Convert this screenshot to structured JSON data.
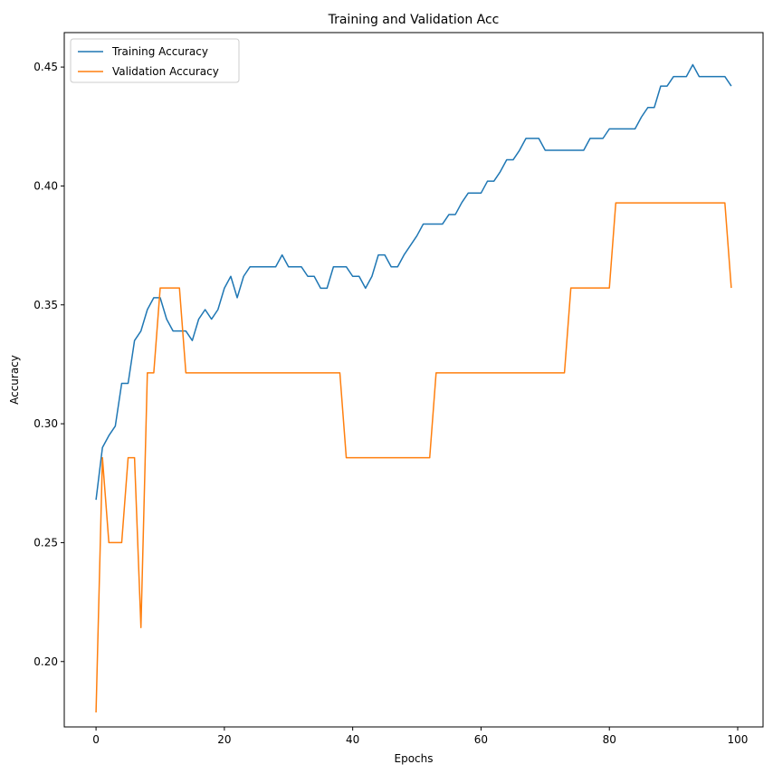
{
  "chart_data": {
    "type": "line",
    "title": "Training and Validation Acc",
    "xlabel": "Epochs",
    "ylabel": "Accuracy",
    "xlim": [
      -4.95,
      103.95
    ],
    "ylim": [
      0.1725,
      0.4645
    ],
    "xticks": [
      0,
      20,
      40,
      60,
      80,
      100
    ],
    "yticks": [
      0.2,
      0.25,
      0.3,
      0.35,
      0.4,
      0.45
    ],
    "ytick_labels": [
      "0.20",
      "0.25",
      "0.30",
      "0.35",
      "0.40",
      "0.45"
    ],
    "xtick_labels": [
      "0",
      "20",
      "40",
      "60",
      "80",
      "100"
    ],
    "grid": false,
    "legend_position": "upper-left",
    "series": [
      {
        "name": "Training Accuracy",
        "color": "#1f77b4",
        "x": [
          0,
          1,
          2,
          3,
          4,
          5,
          6,
          7,
          8,
          9,
          10,
          11,
          12,
          13,
          14,
          15,
          16,
          17,
          18,
          19,
          20,
          21,
          22,
          23,
          24,
          25,
          26,
          27,
          28,
          29,
          30,
          31,
          32,
          33,
          34,
          35,
          36,
          37,
          38,
          39,
          40,
          41,
          42,
          43,
          44,
          45,
          46,
          47,
          48,
          49,
          50,
          51,
          52,
          53,
          54,
          55,
          56,
          57,
          58,
          59,
          60,
          61,
          62,
          63,
          64,
          65,
          66,
          67,
          68,
          69,
          70,
          71,
          72,
          73,
          74,
          75,
          76,
          77,
          78,
          79,
          80,
          81,
          82,
          83,
          84,
          85,
          86,
          87,
          88,
          89,
          90,
          91,
          92,
          93,
          94,
          95,
          96,
          97,
          98,
          99
        ],
        "values": [
          0.268,
          0.29,
          0.295,
          0.299,
          0.317,
          0.317,
          0.335,
          0.339,
          0.348,
          0.353,
          0.353,
          0.344,
          0.339,
          0.339,
          0.339,
          0.335,
          0.344,
          0.348,
          0.344,
          0.348,
          0.357,
          0.362,
          0.353,
          0.362,
          0.366,
          0.366,
          0.366,
          0.366,
          0.366,
          0.371,
          0.366,
          0.366,
          0.366,
          0.362,
          0.362,
          0.357,
          0.357,
          0.366,
          0.366,
          0.366,
          0.362,
          0.362,
          0.357,
          0.362,
          0.371,
          0.371,
          0.366,
          0.366,
          0.371,
          0.375,
          0.379,
          0.384,
          0.384,
          0.384,
          0.384,
          0.388,
          0.388,
          0.393,
          0.397,
          0.397,
          0.397,
          0.402,
          0.402,
          0.406,
          0.411,
          0.411,
          0.415,
          0.42,
          0.42,
          0.42,
          0.415,
          0.415,
          0.415,
          0.415,
          0.415,
          0.415,
          0.415,
          0.42,
          0.42,
          0.42,
          0.424,
          0.424,
          0.424,
          0.424,
          0.424,
          0.429,
          0.433,
          0.433,
          0.442,
          0.442,
          0.446,
          0.446,
          0.446,
          0.451,
          0.446,
          0.446,
          0.446,
          0.446,
          0.446,
          0.442
        ]
      },
      {
        "name": "Validation Accuracy",
        "color": "#ff7f0e",
        "x": [
          0,
          1,
          2,
          3,
          4,
          5,
          6,
          7,
          8,
          9,
          10,
          11,
          12,
          13,
          14,
          15,
          16,
          17,
          18,
          19,
          20,
          21,
          22,
          23,
          24,
          25,
          26,
          27,
          28,
          29,
          30,
          31,
          32,
          33,
          34,
          35,
          36,
          37,
          38,
          39,
          40,
          41,
          42,
          43,
          44,
          45,
          46,
          47,
          48,
          49,
          50,
          51,
          52,
          53,
          54,
          55,
          56,
          57,
          58,
          59,
          60,
          61,
          62,
          63,
          64,
          65,
          66,
          67,
          68,
          69,
          70,
          71,
          72,
          73,
          74,
          75,
          76,
          77,
          78,
          79,
          80,
          81,
          82,
          83,
          84,
          85,
          86,
          87,
          88,
          89,
          90,
          91,
          92,
          93,
          94,
          95,
          96,
          97,
          98,
          99
        ],
        "values": [
          0.1786,
          0.2857,
          0.25,
          0.25,
          0.25,
          0.2857,
          0.2857,
          0.2143,
          0.3214,
          0.3214,
          0.3571,
          0.3571,
          0.3571,
          0.3571,
          0.3214,
          0.3214,
          0.3214,
          0.3214,
          0.3214,
          0.3214,
          0.3214,
          0.3214,
          0.3214,
          0.3214,
          0.3214,
          0.3214,
          0.3214,
          0.3214,
          0.3214,
          0.3214,
          0.3214,
          0.3214,
          0.3214,
          0.3214,
          0.3214,
          0.3214,
          0.3214,
          0.3214,
          0.3214,
          0.2857,
          0.2857,
          0.2857,
          0.2857,
          0.2857,
          0.2857,
          0.2857,
          0.2857,
          0.2857,
          0.2857,
          0.2857,
          0.2857,
          0.2857,
          0.2857,
          0.3214,
          0.3214,
          0.3214,
          0.3214,
          0.3214,
          0.3214,
          0.3214,
          0.3214,
          0.3214,
          0.3214,
          0.3214,
          0.3214,
          0.3214,
          0.3214,
          0.3214,
          0.3214,
          0.3214,
          0.3214,
          0.3214,
          0.3214,
          0.3214,
          0.3571,
          0.3571,
          0.3571,
          0.3571,
          0.3571,
          0.3571,
          0.3571,
          0.3929,
          0.3929,
          0.3929,
          0.3929,
          0.3929,
          0.3929,
          0.3929,
          0.3929,
          0.3929,
          0.3929,
          0.3929,
          0.3929,
          0.3929,
          0.3929,
          0.3929,
          0.3929,
          0.3929,
          0.3929,
          0.3571
        ]
      }
    ]
  }
}
